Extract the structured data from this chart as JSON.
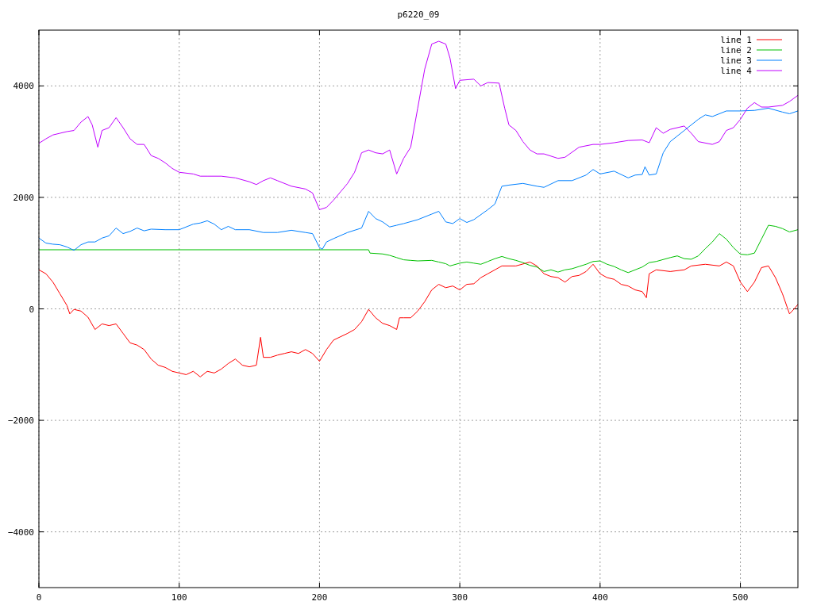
{
  "chart_data": {
    "type": "line",
    "title": "p6220_09",
    "xlim": [
      0,
      541
    ],
    "xticks": [
      0,
      100,
      200,
      300,
      400,
      500
    ],
    "ylim": [
      -5000,
      5000
    ],
    "yticks": [
      -4000,
      -2000,
      0,
      2000,
      4000
    ],
    "grid": true,
    "legend": "top right",
    "series": [
      {
        "name": "line 1",
        "color": "#ff0000",
        "x": [
          0,
          5,
          10,
          15,
          20,
          22,
          25,
          30,
          35,
          40,
          45,
          50,
          55,
          60,
          65,
          70,
          75,
          80,
          85,
          90,
          95,
          100,
          105,
          110,
          115,
          120,
          125,
          130,
          135,
          140,
          145,
          150,
          155,
          158,
          160,
          165,
          170,
          175,
          180,
          185,
          190,
          195,
          200,
          205,
          210,
          215,
          220,
          225,
          230,
          235,
          240,
          245,
          250,
          255,
          257,
          260,
          265,
          270,
          275,
          280,
          285,
          290,
          295,
          300,
          305,
          310,
          315,
          320,
          325,
          330,
          340,
          350,
          355,
          360,
          365,
          370,
          375,
          380,
          385,
          390,
          395,
          400,
          405,
          410,
          415,
          420,
          425,
          430,
          433,
          435,
          440,
          450,
          460,
          465,
          475,
          485,
          490,
          495,
          500,
          505,
          510,
          515,
          520,
          525,
          530,
          535,
          538,
          541
        ],
        "values": [
          700,
          630,
          480,
          270,
          60,
          -90,
          -10,
          -40,
          -150,
          -370,
          -270,
          -300,
          -270,
          -440,
          -610,
          -650,
          -730,
          -900,
          -1010,
          -1050,
          -1120,
          -1150,
          -1180,
          -1120,
          -1220,
          -1120,
          -1150,
          -1080,
          -980,
          -900,
          -1010,
          -1040,
          -1010,
          -510,
          -870,
          -870,
          -830,
          -800,
          -770,
          -800,
          -730,
          -800,
          -940,
          -730,
          -560,
          -500,
          -440,
          -370,
          -230,
          -10,
          -160,
          -260,
          -300,
          -370,
          -160,
          -160,
          -160,
          -40,
          130,
          340,
          440,
          380,
          410,
          340,
          440,
          450,
          560,
          630,
          700,
          770,
          770,
          840,
          770,
          630,
          580,
          560,
          480,
          580,
          600,
          670,
          800,
          630,
          560,
          530,
          440,
          410,
          340,
          310,
          200,
          630,
          700,
          670,
          700,
          770,
          800,
          770,
          840,
          770,
          480,
          310,
          480,
          740,
          770,
          560,
          270,
          -90,
          -10,
          80
        ]
      },
      {
        "name": "line 2",
        "color": "#00c000",
        "x": [
          0,
          235,
          236,
          245,
          250,
          255,
          260,
          265,
          270,
          280,
          285,
          290,
          293,
          300,
          305,
          310,
          315,
          320,
          325,
          330,
          335,
          340,
          345,
          350,
          355,
          360,
          365,
          370,
          375,
          380,
          385,
          390,
          395,
          400,
          405,
          410,
          415,
          420,
          425,
          430,
          435,
          440,
          450,
          455,
          460,
          465,
          470,
          475,
          480,
          485,
          490,
          495,
          500,
          505,
          510,
          515,
          520,
          525,
          530,
          535,
          541
        ],
        "values": [
          1060,
          1060,
          1000,
          985,
          960,
          920,
          880,
          870,
          860,
          870,
          840,
          810,
          770,
          820,
          840,
          820,
          800,
          850,
          900,
          940,
          900,
          870,
          830,
          780,
          750,
          670,
          700,
          660,
          700,
          720,
          760,
          800,
          850,
          860,
          800,
          760,
          700,
          650,
          700,
          750,
          830,
          850,
          920,
          950,
          900,
          890,
          950,
          1080,
          1200,
          1350,
          1250,
          1100,
          980,
          970,
          1000,
          1250,
          1500,
          1480,
          1440,
          1380,
          1420
        ]
      },
      {
        "name": "line 3",
        "color": "#0080ff",
        "x": [
          0,
          5,
          10,
          15,
          20,
          25,
          30,
          35,
          40,
          45,
          50,
          55,
          60,
          65,
          70,
          75,
          80,
          90,
          100,
          110,
          115,
          120,
          125,
          130,
          135,
          140,
          150,
          160,
          170,
          180,
          190,
          195,
          200,
          202,
          205,
          210,
          220,
          230,
          235,
          240,
          245,
          250,
          255,
          260,
          270,
          280,
          285,
          290,
          295,
          300,
          305,
          310,
          320,
          325,
          330,
          335,
          345,
          355,
          360,
          370,
          380,
          390,
          395,
          400,
          410,
          420,
          425,
          430,
          432,
          435,
          440,
          445,
          450,
          460,
          470,
          475,
          480,
          490,
          500,
          510,
          520,
          530,
          535,
          541
        ],
        "values": [
          1270,
          1180,
          1160,
          1150,
          1110,
          1050,
          1150,
          1200,
          1200,
          1270,
          1310,
          1450,
          1350,
          1390,
          1450,
          1400,
          1430,
          1420,
          1420,
          1520,
          1540,
          1580,
          1520,
          1420,
          1480,
          1420,
          1420,
          1370,
          1370,
          1410,
          1370,
          1350,
          1100,
          1070,
          1200,
          1260,
          1370,
          1450,
          1750,
          1620,
          1560,
          1470,
          1500,
          1530,
          1600,
          1700,
          1750,
          1560,
          1530,
          1620,
          1550,
          1600,
          1780,
          1880,
          2200,
          2220,
          2250,
          2200,
          2180,
          2300,
          2300,
          2400,
          2500,
          2420,
          2470,
          2350,
          2400,
          2410,
          2550,
          2400,
          2420,
          2800,
          3000,
          3200,
          3400,
          3480,
          3450,
          3550,
          3550,
          3560,
          3600,
          3530,
          3500,
          3550
        ]
      },
      {
        "name": "line 4",
        "color": "#c000ff",
        "x": [
          0,
          5,
          10,
          15,
          20,
          25,
          30,
          35,
          38,
          42,
          45,
          50,
          55,
          60,
          65,
          70,
          75,
          80,
          85,
          90,
          95,
          100,
          110,
          115,
          120,
          130,
          140,
          150,
          155,
          160,
          165,
          170,
          180,
          190,
          195,
          200,
          205,
          210,
          215,
          220,
          225,
          230,
          235,
          240,
          245,
          250,
          255,
          260,
          265,
          270,
          275,
          280,
          285,
          290,
          293,
          297,
          300,
          310,
          315,
          320,
          328,
          332,
          335,
          340,
          345,
          350,
          355,
          360,
          370,
          375,
          385,
          395,
          400,
          410,
          420,
          430,
          435,
          440,
          445,
          450,
          460,
          465,
          470,
          480,
          485,
          490,
          495,
          500,
          505,
          510,
          515,
          520,
          530,
          535,
          541
        ],
        "values": [
          2970,
          3050,
          3120,
          3150,
          3180,
          3200,
          3350,
          3450,
          3300,
          2900,
          3200,
          3250,
          3430,
          3250,
          3050,
          2950,
          2950,
          2750,
          2700,
          2620,
          2520,
          2450,
          2420,
          2380,
          2380,
          2380,
          2350,
          2280,
          2230,
          2300,
          2350,
          2300,
          2200,
          2150,
          2080,
          1780,
          1820,
          1950,
          2100,
          2250,
          2450,
          2800,
          2850,
          2800,
          2780,
          2850,
          2420,
          2700,
          2900,
          3600,
          4300,
          4750,
          4800,
          4750,
          4500,
          3950,
          4100,
          4120,
          4000,
          4060,
          4050,
          3600,
          3300,
          3200,
          3000,
          2850,
          2780,
          2780,
          2700,
          2720,
          2900,
          2950,
          2950,
          2980,
          3020,
          3030,
          2980,
          3250,
          3150,
          3220,
          3280,
          3150,
          3000,
          2950,
          3000,
          3200,
          3250,
          3400,
          3600,
          3700,
          3620,
          3620,
          3650,
          3720,
          3830
        ]
      }
    ]
  }
}
